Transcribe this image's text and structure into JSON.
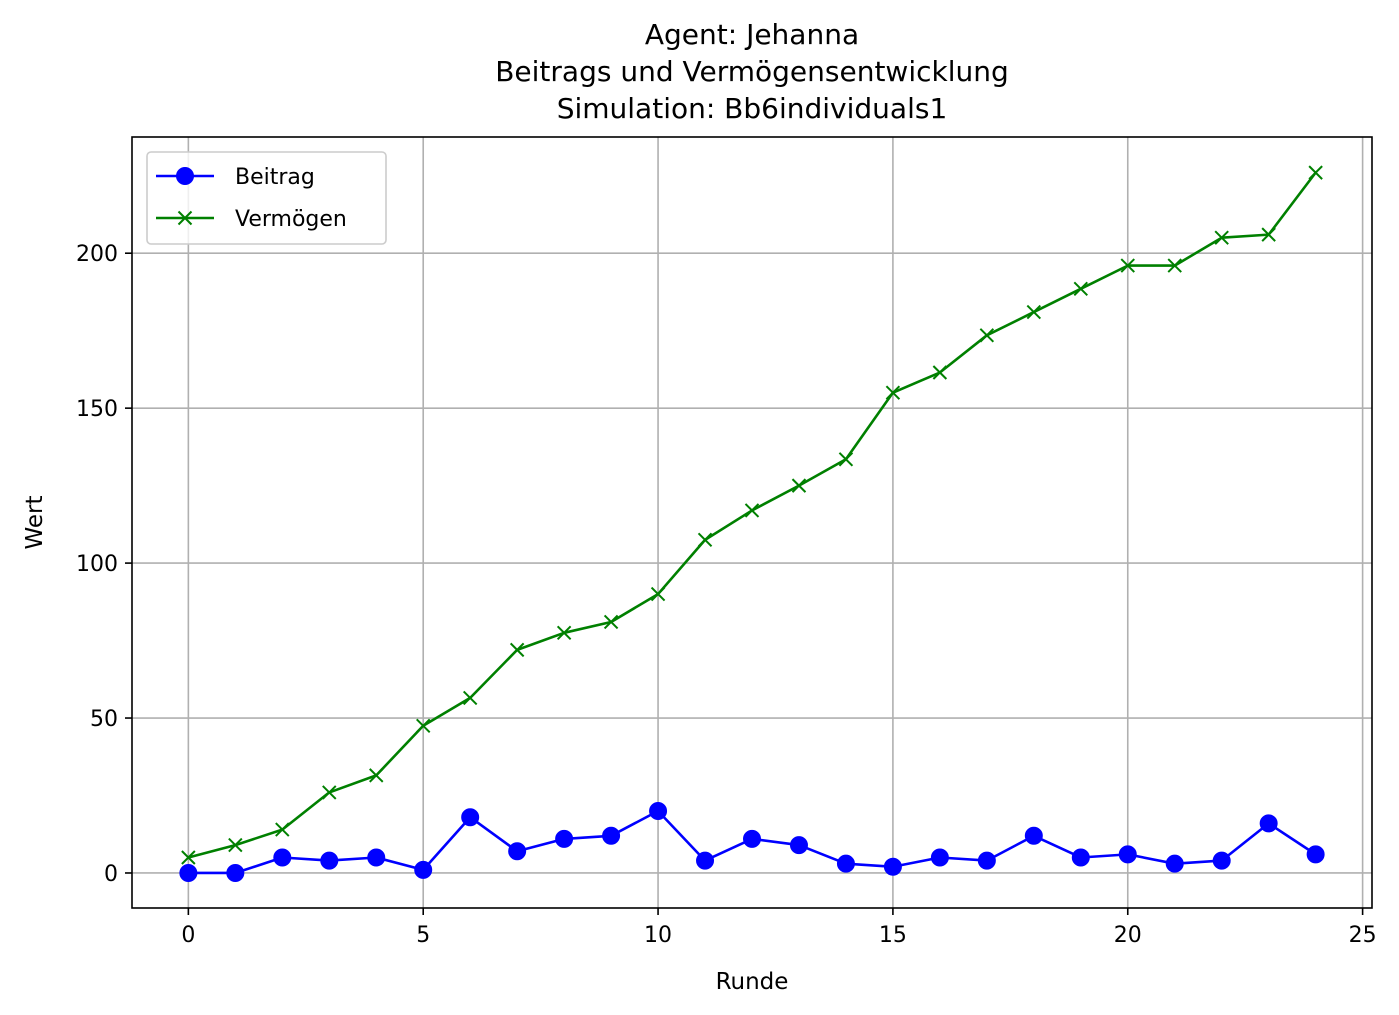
{
  "chart_data": {
    "type": "line",
    "title_lines": [
      "Agent: Jehanna",
      "Beitrags und Vermögensentwicklung",
      "Simulation: Bb6individuals1"
    ],
    "xlabel": "Runde",
    "ylabel": "Wert",
    "xlim": [
      -1.2,
      25.2
    ],
    "ylim": [
      -11.3,
      237.5
    ],
    "xticks": [
      0,
      5,
      10,
      15,
      20,
      25
    ],
    "yticks": [
      0,
      50,
      100,
      150,
      200
    ],
    "grid": true,
    "legend_position": "upper-left",
    "x": [
      0,
      1,
      2,
      3,
      4,
      5,
      6,
      7,
      8,
      9,
      10,
      11,
      12,
      13,
      14,
      15,
      16,
      17,
      18,
      19,
      20,
      21,
      22,
      23,
      24
    ],
    "series": [
      {
        "name": "Beitrag",
        "color": "#0000ff",
        "marker": "circle",
        "values": [
          0,
          0,
          5,
          4,
          5,
          1,
          18,
          7,
          11,
          12,
          20,
          4,
          11,
          9,
          3,
          2,
          5,
          4,
          12,
          5,
          6,
          3,
          4,
          16,
          6
        ]
      },
      {
        "name": "Vermögen",
        "color": "#008000",
        "marker": "x",
        "values": [
          5,
          9,
          14,
          26,
          31.5,
          47.5,
          56.5,
          72,
          77.5,
          81,
          90,
          107.5,
          117,
          125,
          133.5,
          155,
          161.5,
          173.5,
          181,
          188.5,
          196,
          196,
          205,
          206,
          226
        ]
      }
    ]
  }
}
